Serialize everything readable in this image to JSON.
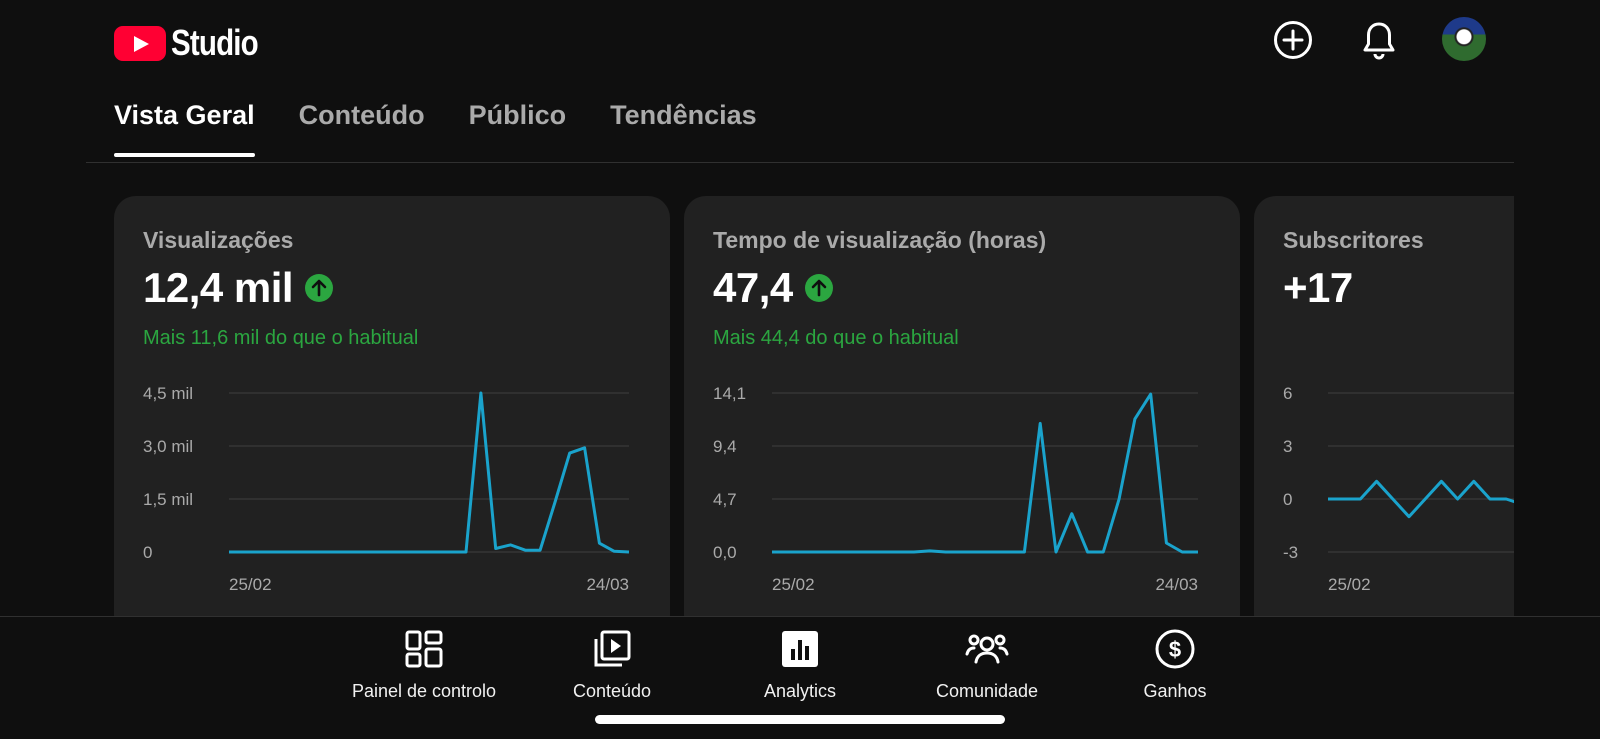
{
  "header": {
    "brand": "Studio",
    "icons": [
      "create-icon",
      "bell-icon",
      "avatar"
    ]
  },
  "tabs": [
    {
      "label": "Vista Geral",
      "active": true
    },
    {
      "label": "Conteúdo",
      "active": false
    },
    {
      "label": "Público",
      "active": false
    },
    {
      "label": "Tendências",
      "active": false
    }
  ],
  "cards": [
    {
      "title": "Visualizações",
      "value": "12,4 mil",
      "trend": "up",
      "subtitle": "Mais 11,6 mil do que o habitual"
    },
    {
      "title": "Tempo de visualização (horas)",
      "value": "47,4",
      "trend": "up",
      "subtitle": "Mais 44,4 do que o habitual"
    },
    {
      "title": "Subscritores",
      "value": "+17",
      "trend": "none",
      "subtitle": ""
    }
  ],
  "chart_data": [
    {
      "type": "line",
      "title": "",
      "x_start": "25/02",
      "x_end": "24/03",
      "y_ticks": [
        "4,5 mil",
        "3,0 mil",
        "1,5 mil",
        "0"
      ],
      "ylim": [
        0,
        4500
      ],
      "grid": true,
      "line_color": "#1aa3cc",
      "values": [
        0,
        0,
        0,
        0,
        0,
        0,
        0,
        0,
        0,
        0,
        0,
        0,
        0,
        0,
        0,
        0,
        0,
        4500,
        100,
        200,
        50,
        50,
        1400,
        2800,
        2950,
        250,
        20,
        0
      ]
    },
    {
      "type": "line",
      "title": "",
      "x_start": "25/02",
      "x_end": "24/03",
      "y_ticks": [
        "14,1",
        "9,4",
        "4,7",
        "0,0"
      ],
      "ylim": [
        0,
        14.1
      ],
      "grid": true,
      "line_color": "#1aa3cc",
      "values": [
        0,
        0,
        0,
        0,
        0,
        0,
        0,
        0,
        0,
        0,
        0.1,
        0,
        0,
        0,
        0,
        0,
        0,
        11.4,
        0,
        3.4,
        0,
        0,
        4.7,
        11.8,
        14.0,
        0.8,
        0,
        0
      ]
    },
    {
      "type": "line",
      "title": "",
      "x_start": "25/02",
      "x_end": "",
      "y_ticks": [
        "6",
        "3",
        "0",
        "-3"
      ],
      "ylim": [
        -3,
        6
      ],
      "grid": true,
      "line_color": "#1aa3cc",
      "values": [
        0,
        0,
        0,
        1,
        0,
        -1,
        0,
        1,
        0,
        1,
        0,
        0,
        -0.3
      ]
    }
  ],
  "bottom_nav": [
    {
      "label": "Painel de controlo",
      "icon": "dashboard-icon",
      "active": false
    },
    {
      "label": "Conteúdo",
      "icon": "content-icon",
      "active": false
    },
    {
      "label": "Analytics",
      "icon": "analytics-icon",
      "active": true
    },
    {
      "label": "Comunidade",
      "icon": "community-icon",
      "active": false
    },
    {
      "label": "Ganhos",
      "icon": "earnings-icon",
      "active": false
    }
  ]
}
